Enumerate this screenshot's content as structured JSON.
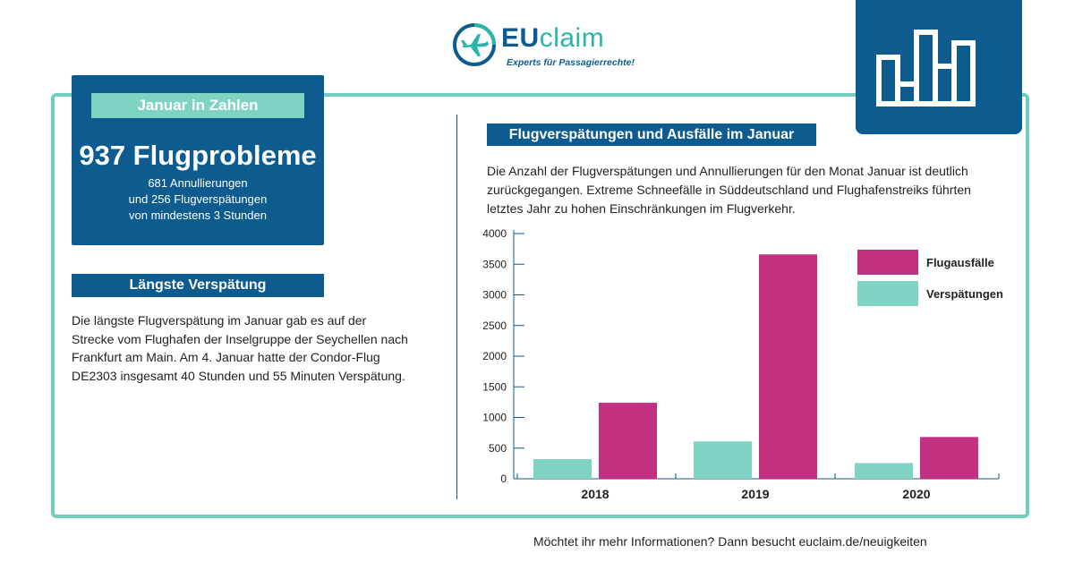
{
  "logo": {
    "text_eu": "EU",
    "text_claim": "claim",
    "tagline": "Experts für Passagierrechte!"
  },
  "colors": {
    "blue": "#0d5b8f",
    "teal": "#7fd3c3",
    "magenta": "#c2317f",
    "frame": "#6fcfbf"
  },
  "stats": {
    "label": "Januar in Zahlen",
    "headline": "937 Flugprobleme",
    "line1": "681 Annullierungen",
    "line2": "und 256 Flugverspätungen",
    "line3": "von mindestens 3 Stunden"
  },
  "longest": {
    "label": "Längste Verspätung",
    "text": "Die längste Flugverspätung im Januar gab es auf der Strecke vom Flughafen der Inselgruppe der Seychellen nach Frankfurt am Main. Am 4. Januar hatte der Condor-Flug DE2303 insgesamt 40 Stunden und 55 Minuten Verspätung."
  },
  "chart_section": {
    "label": "Flugverspätungen und Ausfälle im Januar",
    "description": "Die Anzahl der Flugverspätungen und Annullierungen für den Monat Januar ist deutlich zurückgegangen. Extreme Schneefälle in Süddeutschland und Flughafenstreiks führten letztes Jahr zu hohen Einschränkungen im Flugverkehr."
  },
  "chart_data": {
    "type": "bar",
    "categories": [
      "2018",
      "2019",
      "2020"
    ],
    "series": [
      {
        "name": "Verspätungen",
        "values": [
          320,
          610,
          256
        ],
        "color": "#7fd3c3"
      },
      {
        "name": "Flugausfälle",
        "values": [
          1240,
          3660,
          681
        ],
        "color": "#c2317f"
      }
    ],
    "yticks": [
      "0",
      "500",
      "1000",
      "1500",
      "2000",
      "2500",
      "3000",
      "3500",
      "4000"
    ],
    "ylim": [
      0,
      4000
    ],
    "legend": "top-right",
    "legend_order": [
      "Flugausfälle",
      "Verspätungen"
    ],
    "grid": false
  },
  "footer": {
    "text": "Möchtet ihr mehr Informationen? Dann besucht euclaim.de/neuigkeiten"
  }
}
